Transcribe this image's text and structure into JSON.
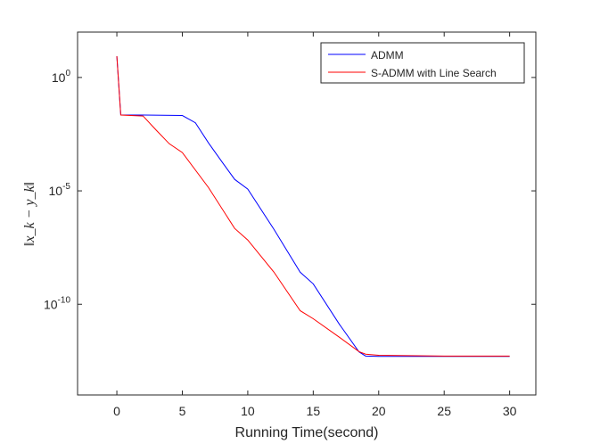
{
  "chart_data": {
    "type": "line",
    "x_label": "Running Time(second)",
    "y_label": "‖x_k − y_k‖",
    "xlim": [
      -3,
      32
    ],
    "xticks": [
      0,
      5,
      10,
      15,
      20,
      25,
      30
    ],
    "ylim": [
      1e-14,
      100
    ],
    "y_log": true,
    "yticks": [
      {
        "value": 1e-10,
        "label": "10^-10"
      },
      {
        "value": 1e-05,
        "label": "10^-5"
      },
      {
        "value": 1,
        "label": "10^0"
      }
    ],
    "grid": false,
    "legend_position": "northeast",
    "series": [
      {
        "name": "ADMM",
        "color": "#0000ff",
        "x": [
          0,
          0.3,
          2,
          5,
          6,
          7,
          8,
          9,
          10,
          12,
          14,
          15,
          17,
          18.5,
          19,
          20,
          25,
          30
        ],
        "values": [
          8.7,
          0.022,
          0.022,
          0.021,
          0.01,
          0.0013,
          0.0002,
          3.2e-05,
          1.2e-05,
          2e-07,
          2.6e-09,
          7.9e-10,
          1.3e-11,
          7.9e-13,
          5.2e-13,
          5e-13,
          5e-13,
          5e-13
        ]
      },
      {
        "name": "S-ADMM with Line Search",
        "color": "#ff0000",
        "x": [
          0,
          0.3,
          2,
          3,
          4,
          5,
          7,
          9,
          10,
          12,
          14,
          15,
          17,
          18.5,
          19,
          20,
          25,
          30
        ],
        "values": [
          8.7,
          0.022,
          0.02,
          0.0048,
          0.0012,
          0.00049,
          1.4e-05,
          2.2e-07,
          6.8e-08,
          2.6e-09,
          5.2e-11,
          2.3e-11,
          3.5e-12,
          8.1e-13,
          6.3e-13,
          5.6e-13,
          5.2e-13,
          5.2e-13
        ]
      }
    ]
  }
}
